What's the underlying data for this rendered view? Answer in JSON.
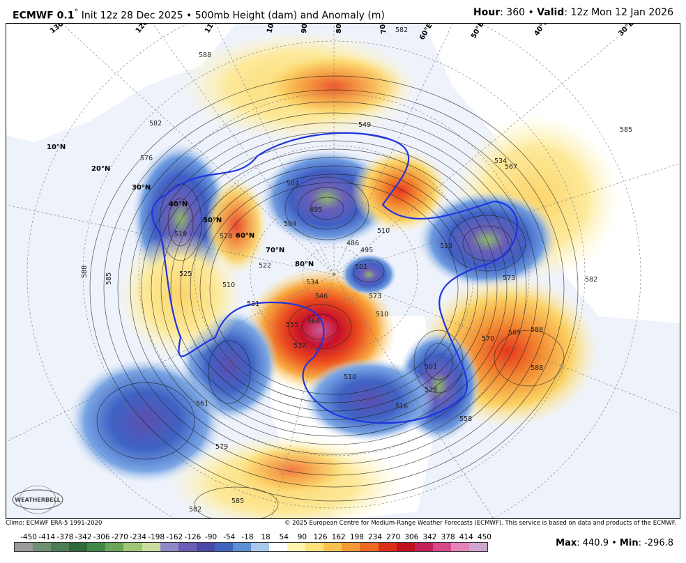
{
  "header": {
    "model": "ECMWF 0.1",
    "deg": "°",
    "init": " Init 12z 28 Dec 2025 • 500mb Height (dam) and Anomaly (m)",
    "hour_label": "Hour",
    "hour_value": ": 360 • ",
    "valid_label": "Valid",
    "valid_value": ": 12z Mon 12 Jan 2026"
  },
  "footer": {
    "climo": "Climo: ECMWF ERA-5 1991-2020",
    "copyright": "© 2025 European Centre for Medium-Range Weather Forecasts (ECMWF). This service is based on data and products of the ECMWF."
  },
  "colorbar": {
    "ticks": [
      "-450",
      "-414",
      "-378",
      "-342",
      "-306",
      "-270",
      "-234",
      "-198",
      "-162",
      "-126",
      "-90",
      "-54",
      "-18",
      "18",
      "54",
      "90",
      "126",
      "162",
      "198",
      "234",
      "270",
      "306",
      "342",
      "378",
      "414",
      "450"
    ],
    "colors": [
      "#9a9a9a",
      "#6f8f72",
      "#4d7d55",
      "#2f6a3b",
      "#3f8a48",
      "#6aa657",
      "#9fc672",
      "#c8dea0",
      "#8f88c6",
      "#6c5cb6",
      "#4b49a8",
      "#3e64c0",
      "#5b8fd6",
      "#a9c8ee",
      "#ffffff",
      "#fff3b0",
      "#fde27a",
      "#f9c14e",
      "#f49a38",
      "#ee6a22",
      "#dc2f16",
      "#c0121e",
      "#c2215a",
      "#d84a8a",
      "#e584b8",
      "#cfa6cf"
    ]
  },
  "stats": {
    "max_label": "Max",
    "max_value": ": 440.9 • ",
    "min_label": "Min",
    "min_value": ": -296.8"
  },
  "map": {
    "lat_labels": [
      "10°N",
      "20°N",
      "30°N",
      "40°N",
      "50°N",
      "60°N",
      "70°N",
      "80°N"
    ],
    "lon_labels": [
      "130°E",
      "120°E",
      "110°E",
      "100°E",
      "90°E",
      "80°E",
      "70°E",
      "60°E",
      "50°E",
      "40°E",
      "30°E"
    ],
    "contour_labels": [
      "588",
      "582",
      "576",
      "570",
      "564",
      "558",
      "552",
      "546",
      "540",
      "534",
      "528",
      "522",
      "516",
      "510",
      "504",
      "498",
      "492",
      "486",
      "579",
      "585",
      "561",
      "519",
      "525",
      "531",
      "537",
      "549",
      "555",
      "501",
      "495",
      "573",
      "567",
      "513",
      "507"
    ],
    "logo_text": "WEATHERBELL"
  }
}
